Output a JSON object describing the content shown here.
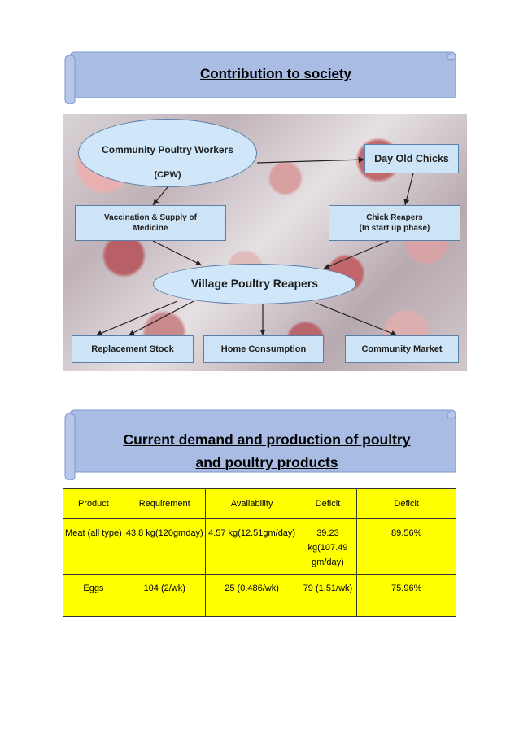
{
  "banner1": {
    "title": "Contribution to society"
  },
  "diagram": {
    "cpw_line1": "Community Poultry Workers",
    "cpw_line2": "(CPW)",
    "day_old_chicks": "Day Old Chicks",
    "vaccination": "Vaccination & Supply of Medicine",
    "chick_reapers_line1": "Chick Reapers",
    "chick_reapers_line2": "(In start up phase)",
    "village_poultry_reapers": "Village Poultry Reapers",
    "replacement_stock": "Replacement Stock",
    "home_consumption": "Home Consumption",
    "community_market": "Community Market"
  },
  "banner2": {
    "line1": "Current demand and production of poultry",
    "line2": "and poultry products"
  },
  "table": {
    "headers": [
      "Product",
      "Requirement",
      "Availability",
      "Deficit",
      "Deficit"
    ],
    "rows": [
      [
        "Meat (all type)",
        "43.8 kg(120gmday)",
        "4.57 kg(12.51gm/day)",
        "39.23 kg(107.49 gm/day)",
        "89.56%"
      ],
      [
        "Eggs",
        "104  (2/wk)",
        "25 (0.486/wk)",
        "79 (1.51/wk)",
        "75.96%"
      ]
    ]
  },
  "colors": {
    "banner_fill": "#a9bce4",
    "banner_stroke": "#6f8cc9",
    "table_fill": "#ffff00",
    "diagram_box": "#cde4f7"
  }
}
